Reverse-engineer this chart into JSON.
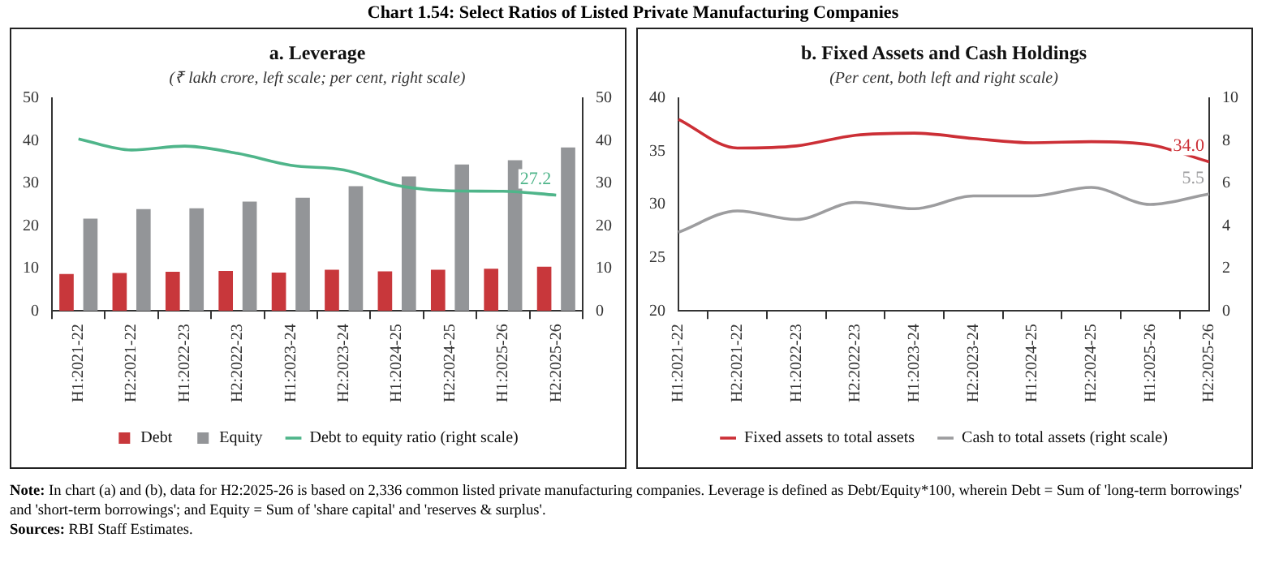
{
  "chart_data": [
    {
      "type": "bar",
      "title": "a. Leverage",
      "subtitle": "(₹ lakh crore, left scale; per cent, right scale)",
      "categories": [
        "H1:2021-22",
        "H2:2021-22",
        "H1:2022-23",
        "H2:2022-23",
        "H1:2023-24",
        "H2:2023-24",
        "H1:2024-25",
        "H2:2024-25",
        "H1:2025-26",
        "H2:2025-26"
      ],
      "series": [
        {
          "name": "Debt",
          "color": "#c8373b",
          "values": [
            8.7,
            8.9,
            9.2,
            9.4,
            9.0,
            9.7,
            9.3,
            9.7,
            9.9,
            10.4
          ]
        },
        {
          "name": "Equity",
          "color": "#939598",
          "values": [
            21.7,
            23.9,
            24.1,
            25.7,
            26.6,
            29.3,
            31.6,
            34.4,
            35.4,
            38.4
          ]
        },
        {
          "name": "Debt to equity ratio (right scale)",
          "type": "line",
          "axis": "y2",
          "color": "#4fb58a",
          "values": [
            40.4,
            37.8,
            38.7,
            37.0,
            34.2,
            33.1,
            29.5,
            28.2,
            28.1,
            27.2
          ],
          "value_labels": [
            null,
            null,
            null,
            null,
            null,
            null,
            null,
            null,
            null,
            "27.2"
          ]
        }
      ],
      "ylim": [
        0,
        50
      ],
      "yticks": [
        0,
        10,
        20,
        30,
        40,
        50
      ],
      "y2lim": [
        0,
        50
      ],
      "y2ticks": [
        0,
        10,
        20,
        30,
        40,
        50
      ],
      "grid": false,
      "legend": "bottom",
      "marker": "none",
      "annotations": [
        "Chart 1.54: Select Ratios of Listed Private Manufacturing Companies"
      ]
    },
    {
      "type": "line",
      "title": "b. Fixed Assets and Cash Holdings",
      "subtitle": "(Per cent, both left and right scale)",
      "categories": [
        "H1:2021-22",
        "H2:2021-22",
        "H1:2022-23",
        "H2:2022-23",
        "H1:2023-24",
        "H2:2023-24",
        "H1:2024-25",
        "H2:2024-25",
        "H1:2025-26",
        "H2:2025-26"
      ],
      "series": [
        {
          "name": "Fixed assets to total assets",
          "color": "#cc2f36",
          "values": [
            38.0,
            35.3,
            35.5,
            36.5,
            36.7,
            36.2,
            35.8,
            35.9,
            35.6,
            34.0
          ],
          "value_labels": [
            null,
            null,
            null,
            null,
            null,
            null,
            null,
            null,
            null,
            "34.0"
          ]
        },
        {
          "name": "Cash to total assets (right scale)",
          "axis": "y2",
          "color": "#9d9d9f",
          "values": [
            3.7,
            4.7,
            4.3,
            5.1,
            4.8,
            5.4,
            5.4,
            5.8,
            5.0,
            5.5
          ],
          "value_labels": [
            null,
            null,
            null,
            null,
            null,
            null,
            null,
            null,
            null,
            "5.5"
          ]
        }
      ],
      "ylim": [
        20,
        40
      ],
      "yticks": [
        20,
        25,
        30,
        35,
        40
      ],
      "y2lim": [
        0,
        10
      ],
      "y2ticks": [
        0,
        2,
        4,
        6,
        8,
        10
      ],
      "grid": false,
      "legend": "bottom",
      "marker": "none",
      "annotations": [
        "Note: In chart (a) and (b), data for H2:2025-26 is based on 2,336 common listed private manufacturing companies. Leverage is defined as Debt/Equity*100, wherein Debt = Sum of 'long-term borrowings' and 'short-term borrowings'; and Equity = Sum of 'share capital' and 'reserves & surplus'.",
        "Sources: RBI Staff Estimates."
      ]
    }
  ]
}
